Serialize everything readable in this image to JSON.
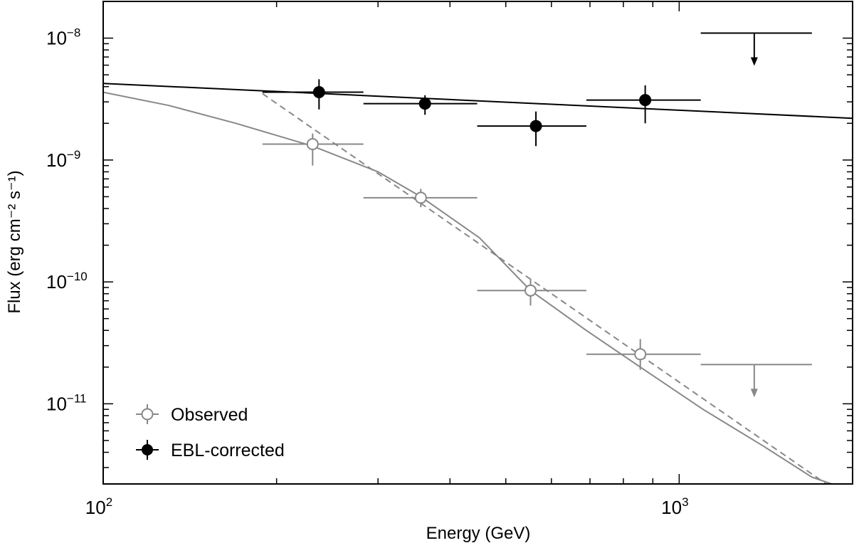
{
  "chart_data": {
    "type": "scatter",
    "title": "",
    "xlabel": "Energy (GeV)",
    "ylabel": "Flux (erg cm⁻² s⁻¹)",
    "x_scale": "log",
    "y_scale": "log",
    "xlim": [
      100,
      2000
    ],
    "ylim": [
      2.2e-12,
      2e-08
    ],
    "x_ticks": [
      {
        "value": 100,
        "label_base": "10",
        "label_exp": "2"
      },
      {
        "value": 1000,
        "label_base": "10",
        "label_exp": "3"
      }
    ],
    "y_ticks": [
      {
        "value": 1e-08,
        "label_base": "10",
        "label_exp": "−8"
      },
      {
        "value": 1e-09,
        "label_base": "10",
        "label_exp": "−9"
      },
      {
        "value": 1e-10,
        "label_base": "10",
        "label_exp": "−10"
      },
      {
        "value": 1e-11,
        "label_base": "10",
        "label_exp": "−11"
      }
    ],
    "legend_position": "bottom-left",
    "series": [
      {
        "name": "Observed",
        "color": "#888888",
        "marker": "open-circle",
        "points": [
          {
            "x": 231,
            "xlo": 189,
            "xhi": 283,
            "y": 1.35e-09,
            "ylo": 9e-10,
            "yhi": 1.65e-09
          },
          {
            "x": 356,
            "xlo": 283,
            "xhi": 446,
            "y": 4.9e-10,
            "ylo": 4.1e-10,
            "yhi": 5.8e-10
          },
          {
            "x": 552,
            "xlo": 446,
            "xhi": 690,
            "y": 8.5e-11,
            "ylo": 6.4e-11,
            "yhi": 1.05e-10
          },
          {
            "x": 856,
            "xlo": 690,
            "xhi": 1090,
            "y": 2.55e-11,
            "ylo": 1.9e-11,
            "yhi": 3.4e-11
          }
        ],
        "upper_limits": [
          {
            "x": 1350,
            "xlo": 1090,
            "xhi": 1700,
            "y": 2.1e-11
          }
        ]
      },
      {
        "name": "EBL-corrected",
        "color": "#000000",
        "marker": "filled-circle",
        "points": [
          {
            "x": 237,
            "xlo": 189,
            "xhi": 283,
            "y": 3.6e-09,
            "ylo": 2.6e-09,
            "yhi": 4.6e-09
          },
          {
            "x": 362,
            "xlo": 283,
            "xhi": 446,
            "y": 2.9e-09,
            "ylo": 2.35e-09,
            "yhi": 3.4e-09
          },
          {
            "x": 564,
            "xlo": 446,
            "xhi": 690,
            "y": 1.9e-09,
            "ylo": 1.3e-09,
            "yhi": 2.5e-09
          },
          {
            "x": 873,
            "xlo": 690,
            "xhi": 1090,
            "y": 3.1e-09,
            "ylo": 2e-09,
            "yhi": 4.1e-09
          }
        ],
        "upper_limits": [
          {
            "x": 1350,
            "xlo": 1090,
            "xhi": 1700,
            "y": 1.1e-08
          }
        ]
      }
    ],
    "curves": [
      {
        "style": "solid",
        "color": "#000000",
        "points": [
          [
            100,
            4.25e-09
          ],
          [
            2000,
            2.2e-09
          ]
        ]
      },
      {
        "style": "solid",
        "color": "#888888",
        "points": [
          [
            100,
            3.6e-09
          ],
          [
            130,
            2.8e-09
          ],
          [
            170,
            2e-09
          ],
          [
            231,
            1.3e-09
          ],
          [
            300,
            8e-10
          ],
          [
            356,
            5e-10
          ],
          [
            450,
            2.3e-10
          ],
          [
            552,
            8.5e-11
          ],
          [
            690,
            4e-11
          ],
          [
            856,
            2e-11
          ],
          [
            1100,
            9e-12
          ],
          [
            1400,
            4.5e-12
          ],
          [
            1700,
            2.5e-12
          ],
          [
            1840,
            2.2e-12
          ]
        ]
      },
      {
        "style": "dashed",
        "color": "#888888",
        "points": [
          [
            189,
            3.5e-09
          ],
          [
            1800,
            2.2e-12
          ]
        ]
      }
    ]
  }
}
